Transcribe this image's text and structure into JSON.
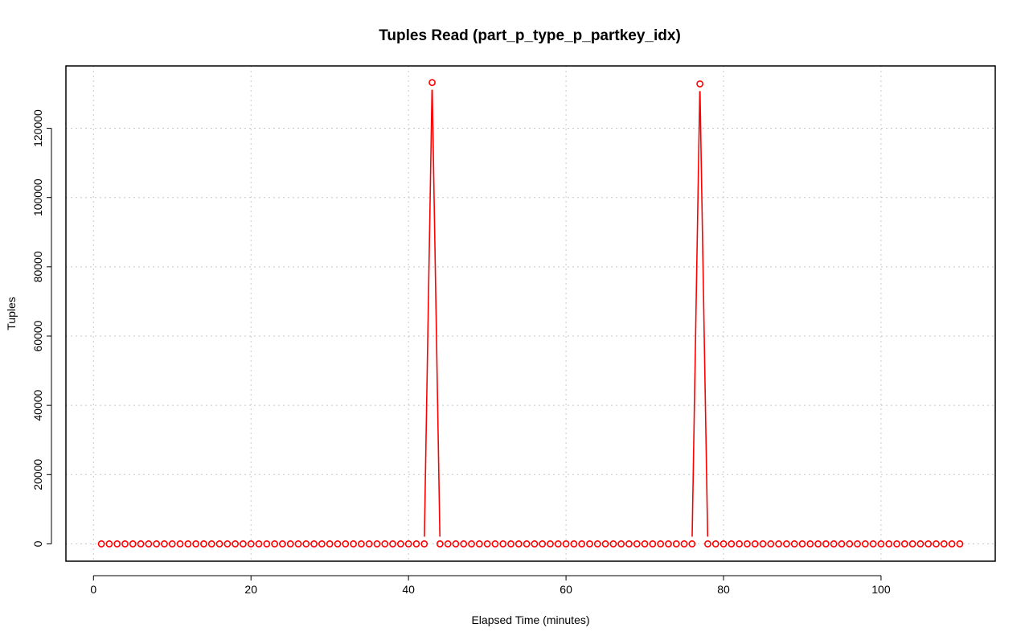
{
  "chart_data": {
    "type": "line",
    "title": "Tuples Read (part_p_type_p_partkey_idx)",
    "xlabel": "Elapsed Time (minutes)",
    "ylabel": "Tuples",
    "xlim": [
      -3.5,
      114.5
    ],
    "ylim": [
      -5000,
      138000
    ],
    "x_ticks": [
      0,
      20,
      40,
      60,
      80,
      100
    ],
    "y_ticks": [
      0,
      20000,
      40000,
      60000,
      80000,
      100000,
      120000
    ],
    "grid": true,
    "line_color": "#ff0000",
    "marker": "open-circle",
    "series": [
      {
        "x": [
          1,
          2,
          3,
          4,
          5,
          6,
          7,
          8,
          9,
          10,
          11,
          12,
          13,
          14,
          15,
          16,
          17,
          18,
          19,
          20,
          21,
          22,
          23,
          24,
          25,
          26,
          27,
          28,
          29,
          30,
          31,
          32,
          33,
          34,
          35,
          36,
          37,
          38,
          39,
          40,
          41,
          42,
          43,
          44,
          45,
          46,
          47,
          48,
          49,
          50,
          51,
          52,
          53,
          54,
          55,
          56,
          57,
          58,
          59,
          60,
          61,
          62,
          63,
          64,
          65,
          66,
          67,
          68,
          69,
          70,
          71,
          72,
          73,
          74,
          75,
          76,
          77,
          78,
          79,
          80,
          81,
          82,
          83,
          84,
          85,
          86,
          87,
          88,
          89,
          90,
          91,
          92,
          93,
          94,
          95,
          96,
          97,
          98,
          99,
          100,
          101,
          102,
          103,
          104,
          105,
          106,
          107,
          108,
          109,
          110
        ],
        "values": [
          0,
          0,
          0,
          0,
          0,
          0,
          0,
          0,
          0,
          0,
          0,
          0,
          0,
          0,
          0,
          0,
          0,
          0,
          0,
          0,
          0,
          0,
          0,
          0,
          0,
          0,
          0,
          0,
          0,
          0,
          0,
          0,
          0,
          0,
          0,
          0,
          0,
          0,
          0,
          0,
          0,
          0,
          133200,
          0,
          0,
          0,
          0,
          0,
          0,
          0,
          0,
          0,
          0,
          0,
          0,
          0,
          0,
          0,
          0,
          0,
          0,
          0,
          0,
          0,
          0,
          0,
          0,
          0,
          0,
          0,
          0,
          0,
          0,
          0,
          0,
          0,
          132800,
          0,
          0,
          0,
          0,
          0,
          0,
          0,
          0,
          0,
          0,
          0,
          0,
          0,
          0,
          0,
          0,
          0,
          0,
          0,
          0,
          0,
          0,
          0,
          0,
          0,
          0,
          0,
          0,
          0,
          0,
          0,
          0,
          0
        ]
      }
    ]
  }
}
